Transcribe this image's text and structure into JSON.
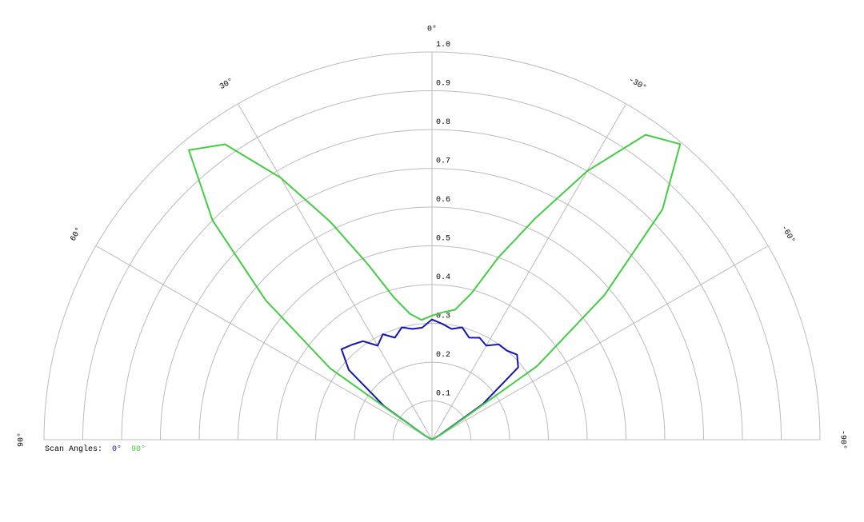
{
  "chart_data": {
    "type": "polar",
    "x": [
      -60,
      -55,
      -50,
      -45,
      -40,
      -35,
      -30,
      -25,
      -20,
      -15,
      -10,
      -5,
      0,
      5,
      10,
      15,
      20,
      25,
      30,
      35,
      40,
      45,
      50,
      55,
      60
    ],
    "series": [
      {
        "name": "0°",
        "color": "#1414b4",
        "values": [
          0.02,
          0.16,
          0.29,
          0.31,
          0.3,
          0.3,
          0.28,
          0.29,
          0.28,
          0.3,
          0.29,
          0.3,
          0.31,
          0.29,
          0.29,
          0.3,
          0.28,
          0.3,
          0.28,
          0.31,
          0.32,
          0.33,
          0.28,
          0.15,
          0.02
        ]
      },
      {
        "name": "90°",
        "color": "#44cc44",
        "values": [
          0.03,
          0.33,
          0.58,
          0.84,
          0.995,
          0.96,
          0.8,
          0.63,
          0.5,
          0.39,
          0.34,
          0.33,
          0.32,
          0.31,
          0.33,
          0.38,
          0.48,
          0.62,
          0.78,
          0.93,
          0.975,
          0.8,
          0.56,
          0.32,
          0.02
        ]
      }
    ],
    "legend_title": "Scan Angles:",
    "rlim": [
      0,
      1
    ],
    "rticks": [
      0.1,
      0.2,
      0.3,
      0.4,
      0.5,
      0.6,
      0.7,
      0.8,
      0.9,
      {
        "value": 1,
        "label": "1.0"
      }
    ],
    "xlim": [
      -90,
      90
    ],
    "xticks": [
      {
        "value": 90,
        "label": "90°"
      },
      {
        "value": 60,
        "label": "60°"
      },
      {
        "value": 30,
        "label": "30°"
      },
      {
        "value": 0,
        "label": "0°"
      },
      {
        "value": -30,
        "label": "-30°"
      },
      {
        "value": -60,
        "label": "-60°"
      },
      {
        "value": -90,
        "label": "-90°"
      }
    ],
    "grid": true
  }
}
